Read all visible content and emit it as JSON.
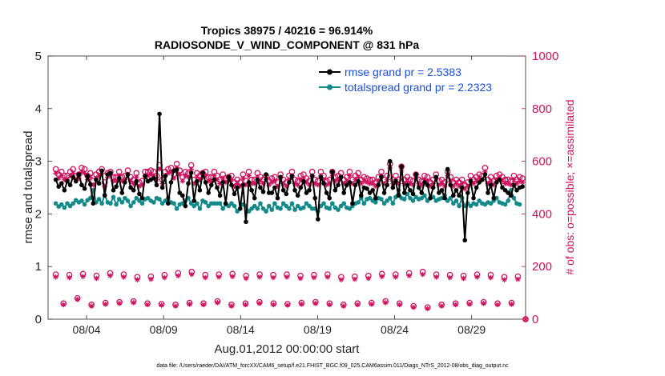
{
  "chart_data": {
    "type": "line",
    "title": "Tropics 38975 / 40216 = 96.914%",
    "subtitle": "RADIOSONDE_V_WIND_COMPONENT @ 831 hPa",
    "xlabel": "Aug.01,2012 00:00:00 start",
    "ylabel": "rmse and totalspread",
    "ylabel_right": "# of obs: o=possible; ×=assimilated",
    "x_unit": "days since Aug 01 2012",
    "xlim": [
      0.5,
      31.5
    ],
    "ylim": [
      0,
      5
    ],
    "ylim_right": [
      0,
      1000
    ],
    "x_ticks": [
      3,
      8,
      13,
      18,
      23,
      28
    ],
    "x_tick_labels": [
      "08/04",
      "08/09",
      "08/14",
      "08/19",
      "08/24",
      "08/29"
    ],
    "y_ticks": [
      0,
      1,
      2,
      3,
      4,
      5
    ],
    "y_ticks_right": [
      0,
      200,
      400,
      600,
      800,
      1000
    ],
    "grid": false,
    "legend_position": "top-right",
    "footer": "data file: /Users/raeder/DAI/ATM_forcXX/CAM6_setup/f.e21.FHIST_BGC.f09_025.CAM6assim.011/Diags_NTrS_2012-08/obs_diag_output.nc",
    "colors": {
      "rmse": "#000000",
      "spread": "#138a8a",
      "obs": "#d0105c",
      "legend_text": "#1a4fd8"
    },
    "series": [
      {
        "name": "rmse grand pr = 2.5383",
        "axis": "left",
        "values": [
          2.65,
          2.52,
          2.58,
          2.45,
          2.62,
          2.55,
          2.7,
          2.62,
          2.75,
          2.55,
          2.48,
          2.72,
          2.56,
          2.2,
          2.65,
          2.58,
          2.82,
          2.35,
          2.75,
          2.78,
          2.45,
          2.52,
          2.68,
          2.4,
          2.6,
          2.75,
          2.5,
          2.45,
          2.62,
          2.38,
          2.3,
          2.72,
          2.62,
          2.65,
          2.68,
          2.55,
          3.9,
          2.5,
          2.72,
          2.2,
          2.6,
          2.82,
          2.84,
          2.4,
          2.35,
          2.15,
          2.58,
          2.78,
          2.25,
          2.62,
          2.45,
          2.78,
          2.6,
          2.4,
          2.55,
          2.65,
          2.5,
          2.35,
          2.6,
          2.2,
          2.7,
          2.55,
          2.38,
          2.5,
          2.1,
          2.55,
          1.85,
          2.6,
          2.45,
          2.3,
          2.65,
          2.5,
          2.42,
          2.75,
          2.4,
          2.4,
          2.5,
          2.3,
          2.7,
          2.45,
          2.38,
          2.6,
          2.72,
          2.45,
          2.35,
          2.5,
          2.62,
          2.4,
          2.45,
          2.72,
          2.3,
          1.9,
          2.7,
          2.58,
          2.4,
          2.3,
          2.8,
          2.45,
          2.55,
          2.7,
          2.4,
          2.55,
          2.6,
          2.2,
          2.55,
          2.62,
          2.35,
          2.5,
          2.48,
          2.4,
          2.45,
          2.3,
          2.55,
          2.7,
          2.4,
          2.55,
          3.0,
          2.5,
          2.62,
          2.35,
          2.9,
          2.4,
          2.55,
          2.45,
          2.38,
          2.75,
          2.5,
          2.4,
          2.6,
          2.55,
          2.3,
          2.5,
          2.7,
          2.4,
          2.45,
          2.3,
          2.85,
          2.55,
          2.35,
          2.45,
          2.35,
          2.5,
          1.5,
          2.4,
          2.62,
          2.3,
          2.5,
          2.6,
          2.65,
          2.75,
          2.4,
          2.55,
          2.3,
          2.6,
          2.65,
          2.5,
          2.45,
          2.4,
          2.35,
          2.55,
          2.45,
          2.5,
          2.52
        ]
      },
      {
        "name": "totalspread grand pr = 2.2323",
        "axis": "left",
        "values": [
          2.2,
          2.14,
          2.18,
          2.12,
          2.2,
          2.15,
          2.2,
          2.26,
          2.22,
          2.25,
          2.18,
          2.26,
          2.3,
          2.45,
          2.22,
          2.28,
          2.2,
          2.36,
          2.22,
          2.2,
          2.32,
          2.18,
          2.28,
          2.22,
          2.3,
          2.25,
          2.15,
          2.22,
          2.3,
          2.25,
          2.2,
          2.28,
          2.3,
          2.25,
          2.22,
          2.3,
          2.28,
          2.2,
          2.25,
          2.3,
          2.22,
          2.2,
          2.1,
          2.18,
          2.2,
          2.25,
          2.3,
          2.2,
          2.15,
          2.2,
          2.1,
          2.25,
          2.22,
          2.15,
          2.2,
          2.2,
          2.2,
          2.2,
          2.1,
          2.18,
          2.15,
          2.2,
          2.15,
          2.05,
          2.1,
          2.18,
          2.15,
          2.05,
          2.1,
          2.15,
          2.1,
          2.2,
          2.1,
          2.05,
          2.15,
          2.08,
          2.2,
          2.12,
          2.1,
          2.2,
          2.15,
          2.1,
          2.2,
          2.08,
          2.15,
          2.1,
          2.12,
          2.2,
          2.15,
          2.1,
          2.1,
          2.05,
          2.15,
          2.2,
          2.12,
          2.1,
          2.2,
          2.12,
          2.08,
          2.15,
          2.2,
          2.12,
          2.1,
          2.15,
          2.2,
          2.22,
          2.3,
          2.2,
          2.28,
          2.3,
          2.25,
          2.22,
          2.3,
          2.28,
          2.2,
          2.25,
          2.3,
          2.2,
          2.32,
          2.45,
          2.3,
          2.28,
          2.38,
          2.3,
          2.25,
          2.32,
          2.28,
          2.3,
          2.35,
          2.25,
          2.3,
          2.32,
          2.25,
          2.28,
          2.3,
          2.35,
          2.25,
          2.3,
          2.2,
          2.25,
          2.15,
          2.3,
          2.15,
          2.2,
          2.15,
          2.2,
          2.18,
          2.25,
          2.2,
          2.18,
          2.22,
          2.2,
          2.25,
          2.3,
          2.22,
          2.2,
          2.18,
          2.25,
          2.45,
          2.3,
          2.2,
          2.18
        ]
      },
      {
        "name": "possible (upper cluster)",
        "axis": "right",
        "values": [
          570,
          550,
          560,
          545,
          545,
          560,
          570,
          545,
          550,
          575,
          570,
          545,
          555,
          525,
          550,
          560,
          570,
          520,
          555,
          560,
          540,
          540,
          560,
          540,
          545,
          565,
          540,
          530,
          555,
          520,
          525,
          560,
          560,
          565,
          560,
          545,
          585,
          530,
          560,
          570,
          575,
          550,
          590,
          565,
          540,
          560,
          555,
          585,
          530,
          555,
          545,
          555,
          560,
          540,
          540,
          560,
          545,
          530,
          550,
          535,
          540,
          545,
          520,
          530,
          520,
          550,
          525,
          560,
          530,
          530,
          555,
          540,
          530,
          545,
          525,
          535,
          540,
          520,
          550,
          530,
          520,
          545,
          560,
          530,
          525,
          545,
          550,
          535,
          525,
          560,
          530,
          525,
          560,
          545,
          525,
          530,
          560,
          540,
          545,
          555,
          530,
          540,
          560,
          530,
          545,
          555,
          530,
          540,
          535,
          530,
          530,
          520,
          540,
          560,
          530,
          545,
          590,
          530,
          545,
          530,
          580,
          530,
          540,
          530,
          525,
          550,
          530,
          525,
          545,
          540,
          520,
          530,
          550,
          525,
          530,
          520,
          560,
          540,
          520,
          530,
          520,
          530,
          510,
          520,
          545,
          530,
          540,
          550,
          545,
          575,
          530,
          540,
          525,
          545,
          550,
          540,
          530,
          530,
          525,
          545,
          530,
          540,
          535
        ]
      },
      {
        "name": "assimilated (upper cluster)",
        "axis": "right",
        "values": [
          555,
          535,
          545,
          530,
          530,
          545,
          555,
          530,
          535,
          560,
          555,
          530,
          540,
          510,
          535,
          545,
          555,
          505,
          540,
          545,
          525,
          525,
          545,
          525,
          530,
          550,
          525,
          515,
          540,
          505,
          510,
          545,
          545,
          550,
          545,
          530,
          570,
          515,
          545,
          555,
          560,
          535,
          575,
          550,
          525,
          545,
          540,
          570,
          515,
          540,
          530,
          540,
          545,
          525,
          525,
          545,
          530,
          515,
          535,
          520,
          525,
          530,
          505,
          515,
          505,
          535,
          510,
          545,
          515,
          515,
          540,
          525,
          515,
          530,
          510,
          520,
          525,
          505,
          535,
          515,
          505,
          530,
          545,
          515,
          510,
          530,
          535,
          520,
          510,
          545,
          515,
          510,
          545,
          530,
          510,
          515,
          545,
          525,
          530,
          540,
          515,
          525,
          545,
          515,
          530,
          540,
          515,
          525,
          520,
          515,
          515,
          505,
          525,
          545,
          515,
          530,
          575,
          515,
          530,
          515,
          565,
          515,
          525,
          515,
          510,
          535,
          515,
          510,
          530,
          525,
          505,
          515,
          535,
          510,
          515,
          505,
          545,
          525,
          505,
          515,
          505,
          515,
          495,
          505,
          530,
          515,
          525,
          535,
          530,
          560,
          515,
          525,
          510,
          530,
          535,
          525,
          515,
          515,
          510,
          530,
          515,
          525,
          520
        ]
      },
      {
        "name": "possible (00Z soundings)",
        "axis": "right",
        "values": [
          170,
          168,
          172,
          165,
          175,
          170,
          160,
          162,
          168,
          175,
          180,
          168,
          170,
          172,
          165,
          170,
          168,
          170,
          165,
          168,
          170,
          160,
          162,
          165,
          172,
          170,
          175,
          180,
          170,
          168,
          165,
          170,
          168,
          160,
          162
        ]
      },
      {
        "name": "assimilated (00Z soundings)",
        "axis": "right",
        "values": [
          160,
          158,
          162,
          155,
          165,
          160,
          150,
          152,
          158,
          165,
          170,
          158,
          160,
          162,
          155,
          160,
          158,
          160,
          155,
          158,
          160,
          150,
          152,
          155,
          162,
          160,
          165,
          170,
          160,
          158,
          155,
          160,
          158,
          150,
          152
        ]
      },
      {
        "name": "possible (12Z soundings)",
        "axis": "right",
        "values": [
          60,
          80,
          55,
          62,
          65,
          68,
          60,
          58,
          55,
          62,
          60,
          68,
          55,
          60,
          65,
          60,
          58,
          62,
          65,
          60,
          55,
          60,
          62,
          68,
          60,
          50,
          45,
          55,
          60,
          62,
          65,
          60,
          62,
          0
        ]
      },
      {
        "name": "assimilated (12Z soundings)",
        "axis": "right",
        "values": [
          55,
          75,
          50,
          57,
          60,
          63,
          55,
          53,
          50,
          57,
          55,
          63,
          50,
          55,
          60,
          55,
          53,
          57,
          60,
          55,
          50,
          55,
          57,
          63,
          55,
          45,
          40,
          50,
          55,
          57,
          60,
          55,
          57,
          0
        ]
      }
    ]
  }
}
